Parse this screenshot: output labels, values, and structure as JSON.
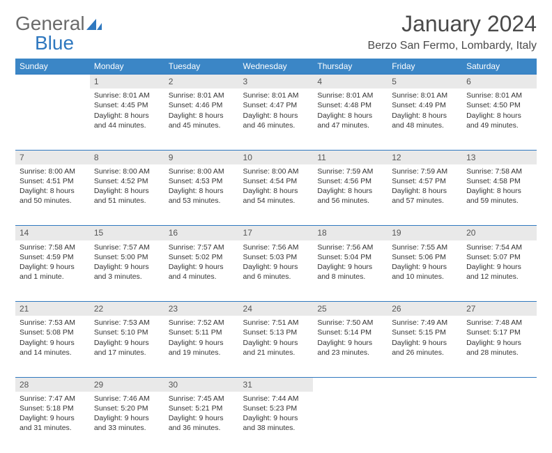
{
  "logo": {
    "text1": "General",
    "text2": "Blue"
  },
  "title": "January 2024",
  "location": "Berzo San Fermo, Lombardy, Italy",
  "colors": {
    "header_bg": "#3b86c6",
    "header_text": "#ffffff",
    "daynum_bg": "#e9e9e9",
    "rule": "#2f78bf",
    "logo_gray": "#6a6a6a",
    "logo_blue": "#2f78bf"
  },
  "day_headers": [
    "Sunday",
    "Monday",
    "Tuesday",
    "Wednesday",
    "Thursday",
    "Friday",
    "Saturday"
  ],
  "weeks": [
    {
      "nums": [
        "",
        "1",
        "2",
        "3",
        "4",
        "5",
        "6"
      ],
      "cells": [
        null,
        {
          "sunrise": "8:01 AM",
          "sunset": "4:45 PM",
          "daylight": "8 hours and 44 minutes."
        },
        {
          "sunrise": "8:01 AM",
          "sunset": "4:46 PM",
          "daylight": "8 hours and 45 minutes."
        },
        {
          "sunrise": "8:01 AM",
          "sunset": "4:47 PM",
          "daylight": "8 hours and 46 minutes."
        },
        {
          "sunrise": "8:01 AM",
          "sunset": "4:48 PM",
          "daylight": "8 hours and 47 minutes."
        },
        {
          "sunrise": "8:01 AM",
          "sunset": "4:49 PM",
          "daylight": "8 hours and 48 minutes."
        },
        {
          "sunrise": "8:01 AM",
          "sunset": "4:50 PM",
          "daylight": "8 hours and 49 minutes."
        }
      ]
    },
    {
      "nums": [
        "7",
        "8",
        "9",
        "10",
        "11",
        "12",
        "13"
      ],
      "cells": [
        {
          "sunrise": "8:00 AM",
          "sunset": "4:51 PM",
          "daylight": "8 hours and 50 minutes."
        },
        {
          "sunrise": "8:00 AM",
          "sunset": "4:52 PM",
          "daylight": "8 hours and 51 minutes."
        },
        {
          "sunrise": "8:00 AM",
          "sunset": "4:53 PM",
          "daylight": "8 hours and 53 minutes."
        },
        {
          "sunrise": "8:00 AM",
          "sunset": "4:54 PM",
          "daylight": "8 hours and 54 minutes."
        },
        {
          "sunrise": "7:59 AM",
          "sunset": "4:56 PM",
          "daylight": "8 hours and 56 minutes."
        },
        {
          "sunrise": "7:59 AM",
          "sunset": "4:57 PM",
          "daylight": "8 hours and 57 minutes."
        },
        {
          "sunrise": "7:58 AM",
          "sunset": "4:58 PM",
          "daylight": "8 hours and 59 minutes."
        }
      ]
    },
    {
      "nums": [
        "14",
        "15",
        "16",
        "17",
        "18",
        "19",
        "20"
      ],
      "cells": [
        {
          "sunrise": "7:58 AM",
          "sunset": "4:59 PM",
          "daylight": "9 hours and 1 minute."
        },
        {
          "sunrise": "7:57 AM",
          "sunset": "5:00 PM",
          "daylight": "9 hours and 3 minutes."
        },
        {
          "sunrise": "7:57 AM",
          "sunset": "5:02 PM",
          "daylight": "9 hours and 4 minutes."
        },
        {
          "sunrise": "7:56 AM",
          "sunset": "5:03 PM",
          "daylight": "9 hours and 6 minutes."
        },
        {
          "sunrise": "7:56 AM",
          "sunset": "5:04 PM",
          "daylight": "9 hours and 8 minutes."
        },
        {
          "sunrise": "7:55 AM",
          "sunset": "5:06 PM",
          "daylight": "9 hours and 10 minutes."
        },
        {
          "sunrise": "7:54 AM",
          "sunset": "5:07 PM",
          "daylight": "9 hours and 12 minutes."
        }
      ]
    },
    {
      "nums": [
        "21",
        "22",
        "23",
        "24",
        "25",
        "26",
        "27"
      ],
      "cells": [
        {
          "sunrise": "7:53 AM",
          "sunset": "5:08 PM",
          "daylight": "9 hours and 14 minutes."
        },
        {
          "sunrise": "7:53 AM",
          "sunset": "5:10 PM",
          "daylight": "9 hours and 17 minutes."
        },
        {
          "sunrise": "7:52 AM",
          "sunset": "5:11 PM",
          "daylight": "9 hours and 19 minutes."
        },
        {
          "sunrise": "7:51 AM",
          "sunset": "5:13 PM",
          "daylight": "9 hours and 21 minutes."
        },
        {
          "sunrise": "7:50 AM",
          "sunset": "5:14 PM",
          "daylight": "9 hours and 23 minutes."
        },
        {
          "sunrise": "7:49 AM",
          "sunset": "5:15 PM",
          "daylight": "9 hours and 26 minutes."
        },
        {
          "sunrise": "7:48 AM",
          "sunset": "5:17 PM",
          "daylight": "9 hours and 28 minutes."
        }
      ]
    },
    {
      "nums": [
        "28",
        "29",
        "30",
        "31",
        "",
        "",
        ""
      ],
      "cells": [
        {
          "sunrise": "7:47 AM",
          "sunset": "5:18 PM",
          "daylight": "9 hours and 31 minutes."
        },
        {
          "sunrise": "7:46 AM",
          "sunset": "5:20 PM",
          "daylight": "9 hours and 33 minutes."
        },
        {
          "sunrise": "7:45 AM",
          "sunset": "5:21 PM",
          "daylight": "9 hours and 36 minutes."
        },
        {
          "sunrise": "7:44 AM",
          "sunset": "5:23 PM",
          "daylight": "9 hours and 38 minutes."
        },
        null,
        null,
        null
      ]
    }
  ],
  "labels": {
    "sunrise": "Sunrise: ",
    "sunset": "Sunset: ",
    "daylight": "Daylight: "
  }
}
